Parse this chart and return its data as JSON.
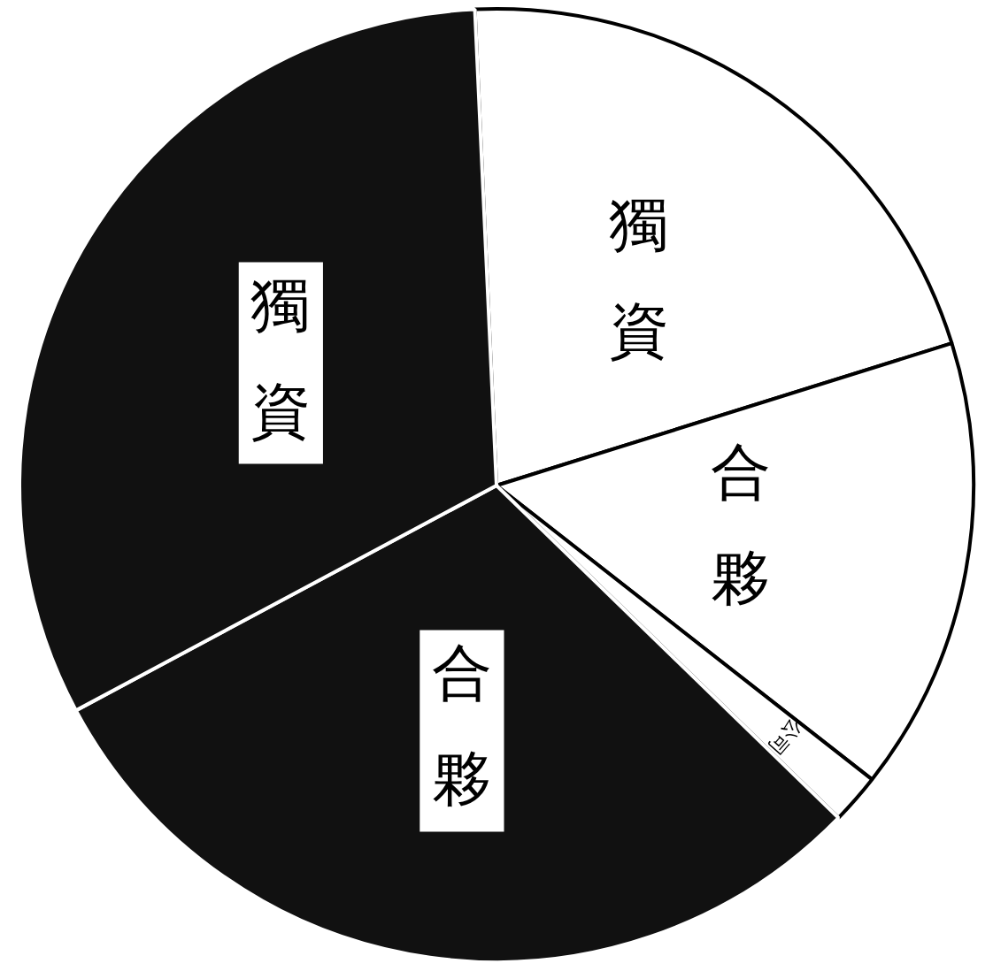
{
  "chart_data": {
    "type": "pie",
    "categories": [
      "獨資",
      "合夥",
      "公司",
      "合夥",
      "獨資"
    ],
    "values": [
      20.9,
      15.4,
      1.7,
      29.9,
      32.1
    ],
    "colors": [
      "#ffffff",
      "#ffffff",
      "#ffffff",
      "#111111",
      "#111111"
    ],
    "legend": false
  }
}
